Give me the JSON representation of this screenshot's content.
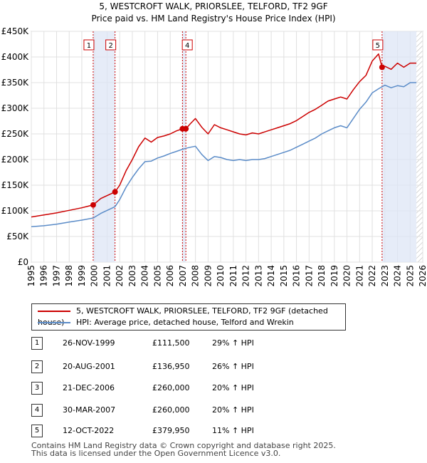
{
  "chart_data": {
    "type": "line",
    "title": "5, WESTCROFT WALK, PRIORSLEE, TELFORD, TF2 9GF",
    "subtitle": "Price paid vs. HM Land Registry's House Price Index (HPI)",
    "xlim": [
      1995,
      2026
    ],
    "ylim": [
      0,
      450000
    ],
    "xticks": [
      "1995",
      "1996",
      "1997",
      "1998",
      "1999",
      "2000",
      "2001",
      "2002",
      "2003",
      "2004",
      "2005",
      "2006",
      "2007",
      "2008",
      "2009",
      "2010",
      "2011",
      "2012",
      "2013",
      "2014",
      "2015",
      "2016",
      "2017",
      "2018",
      "2019",
      "2020",
      "2021",
      "2022",
      "2023",
      "2024",
      "2025",
      "2026"
    ],
    "yticks": [
      {
        "value": 0,
        "label": "£0"
      },
      {
        "value": 50000,
        "label": "£50K"
      },
      {
        "value": 100000,
        "label": "£100K"
      },
      {
        "value": 150000,
        "label": "£150K"
      },
      {
        "value": 200000,
        "label": "£200K"
      },
      {
        "value": 250000,
        "label": "£250K"
      },
      {
        "value": 300000,
        "label": "£300K"
      },
      {
        "value": 350000,
        "label": "£350K"
      },
      {
        "value": 400000,
        "label": "£400K"
      },
      {
        "value": 450000,
        "label": "£450K"
      }
    ],
    "series": [
      {
        "name": "5, WESTCROFT WALK, PRIORSLEE, TELFORD, TF2 9GF (detached house)",
        "color": "#cc0000",
        "x": [
          1995,
          1996,
          1997,
          1998,
          1999,
          1999.9,
          2000.5,
          2001.63,
          2002,
          2002.5,
          2003,
          2003.5,
          2004,
          2004.5,
          2005,
          2005.5,
          2006,
          2006.5,
          2006.97,
          2007.24,
          2007.6,
          2008,
          2008.5,
          2009,
          2009.5,
          2010,
          2010.5,
          2011,
          2011.5,
          2012,
          2012.5,
          2013,
          2013.5,
          2014,
          2014.5,
          2015,
          2015.5,
          2016,
          2016.5,
          2017,
          2017.5,
          2018,
          2018.5,
          2019,
          2019.5,
          2020,
          2020.5,
          2021,
          2021.5,
          2022,
          2022.5,
          2022.78,
          2023,
          2023.5,
          2024,
          2024.5,
          2025,
          2025.5
        ],
        "values": [
          88000,
          92000,
          96000,
          101000,
          106000,
          111500,
          124000,
          136950,
          150000,
          178000,
          200000,
          225000,
          242000,
          234000,
          243000,
          246000,
          250000,
          256000,
          260000,
          260000,
          270000,
          280000,
          263000,
          250000,
          268000,
          262000,
          258000,
          254000,
          250000,
          248000,
          252000,
          250000,
          254000,
          258000,
          262000,
          266000,
          270000,
          276000,
          284000,
          292000,
          298000,
          306000,
          314000,
          318000,
          322000,
          318000,
          336000,
          352000,
          364000,
          392000,
          406000,
          379950,
          382000,
          376000,
          388000,
          380000,
          388000,
          388000
        ]
      },
      {
        "name": "HPI: Average price, detached house, Telford and Wrekin",
        "color": "#5b8cc8",
        "x": [
          1995,
          1996,
          1997,
          1998,
          1999,
          1999.9,
          2000.5,
          2001.63,
          2002,
          2002.5,
          2003,
          2003.5,
          2004,
          2004.5,
          2005,
          2005.5,
          2006,
          2006.5,
          2006.97,
          2007.24,
          2007.6,
          2008,
          2008.5,
          2009,
          2009.5,
          2010,
          2010.5,
          2011,
          2011.5,
          2012,
          2012.5,
          2013,
          2013.5,
          2014,
          2014.5,
          2015,
          2015.5,
          2016,
          2016.5,
          2017,
          2017.5,
          2018,
          2018.5,
          2019,
          2019.5,
          2020,
          2020.5,
          2021,
          2021.5,
          2022,
          2022.5,
          2022.78,
          2023,
          2023.5,
          2024,
          2024.5,
          2025,
          2025.5
        ],
        "values": [
          69000,
          71000,
          74000,
          78000,
          82000,
          86000,
          95000,
          108000,
          122000,
          146000,
          165000,
          182000,
          196000,
          197000,
          203000,
          207000,
          212000,
          216000,
          220000,
          222000,
          224000,
          226000,
          210000,
          198000,
          206000,
          204000,
          200000,
          198000,
          200000,
          198000,
          200000,
          200000,
          202000,
          206000,
          210000,
          214000,
          218000,
          224000,
          230000,
          236000,
          242000,
          250000,
          256000,
          262000,
          266000,
          262000,
          280000,
          298000,
          312000,
          330000,
          338000,
          342000,
          345000,
          340000,
          344000,
          342000,
          350000,
          350000
        ]
      }
    ],
    "sales": [
      {
        "id": "1",
        "x": 1999.9,
        "value": 111500,
        "date": "26-NOV-1999",
        "price": "£111,500",
        "hpi": "29% ↑ HPI"
      },
      {
        "id": "2",
        "x": 2001.63,
        "value": 136950,
        "date": "20-AUG-2001",
        "price": "£136,950",
        "hpi": "26% ↑ HPI"
      },
      {
        "id": "3",
        "x": 2006.97,
        "value": 260000,
        "date": "21-DEC-2006",
        "price": "£260,000",
        "hpi": "20% ↑ HPI"
      },
      {
        "id": "4",
        "x": 2007.24,
        "value": 260000,
        "date": "30-MAR-2007",
        "price": "£260,000",
        "hpi": "20% ↑ HPI"
      },
      {
        "id": "5",
        "x": 2022.78,
        "value": 379950,
        "date": "12-OCT-2022",
        "price": "£379,950",
        "hpi": "11% ↑ HPI"
      }
    ],
    "marker_labels_shown": [
      "1",
      "2",
      "4",
      "5"
    ],
    "shaded_regions": [
      [
        1999.9,
        2001.63
      ],
      [
        2006.97,
        2007.24
      ],
      [
        2022.78,
        2025.5
      ]
    ],
    "hatched_from": 2025.5,
    "grid": true
  },
  "legend": {
    "items": [
      {
        "label": "5, WESTCROFT WALK, PRIORSLEE, TELFORD, TF2 9GF (detached house)",
        "color": "#cc0000"
      },
      {
        "label": "HPI: Average price, detached house, Telford and Wrekin",
        "color": "#5b8cc8"
      }
    ]
  },
  "footer": {
    "line1": "Contains HM Land Registry data © Crown copyright and database right 2025.",
    "line2": "This data is licensed under the Open Government Licence v3.0."
  }
}
